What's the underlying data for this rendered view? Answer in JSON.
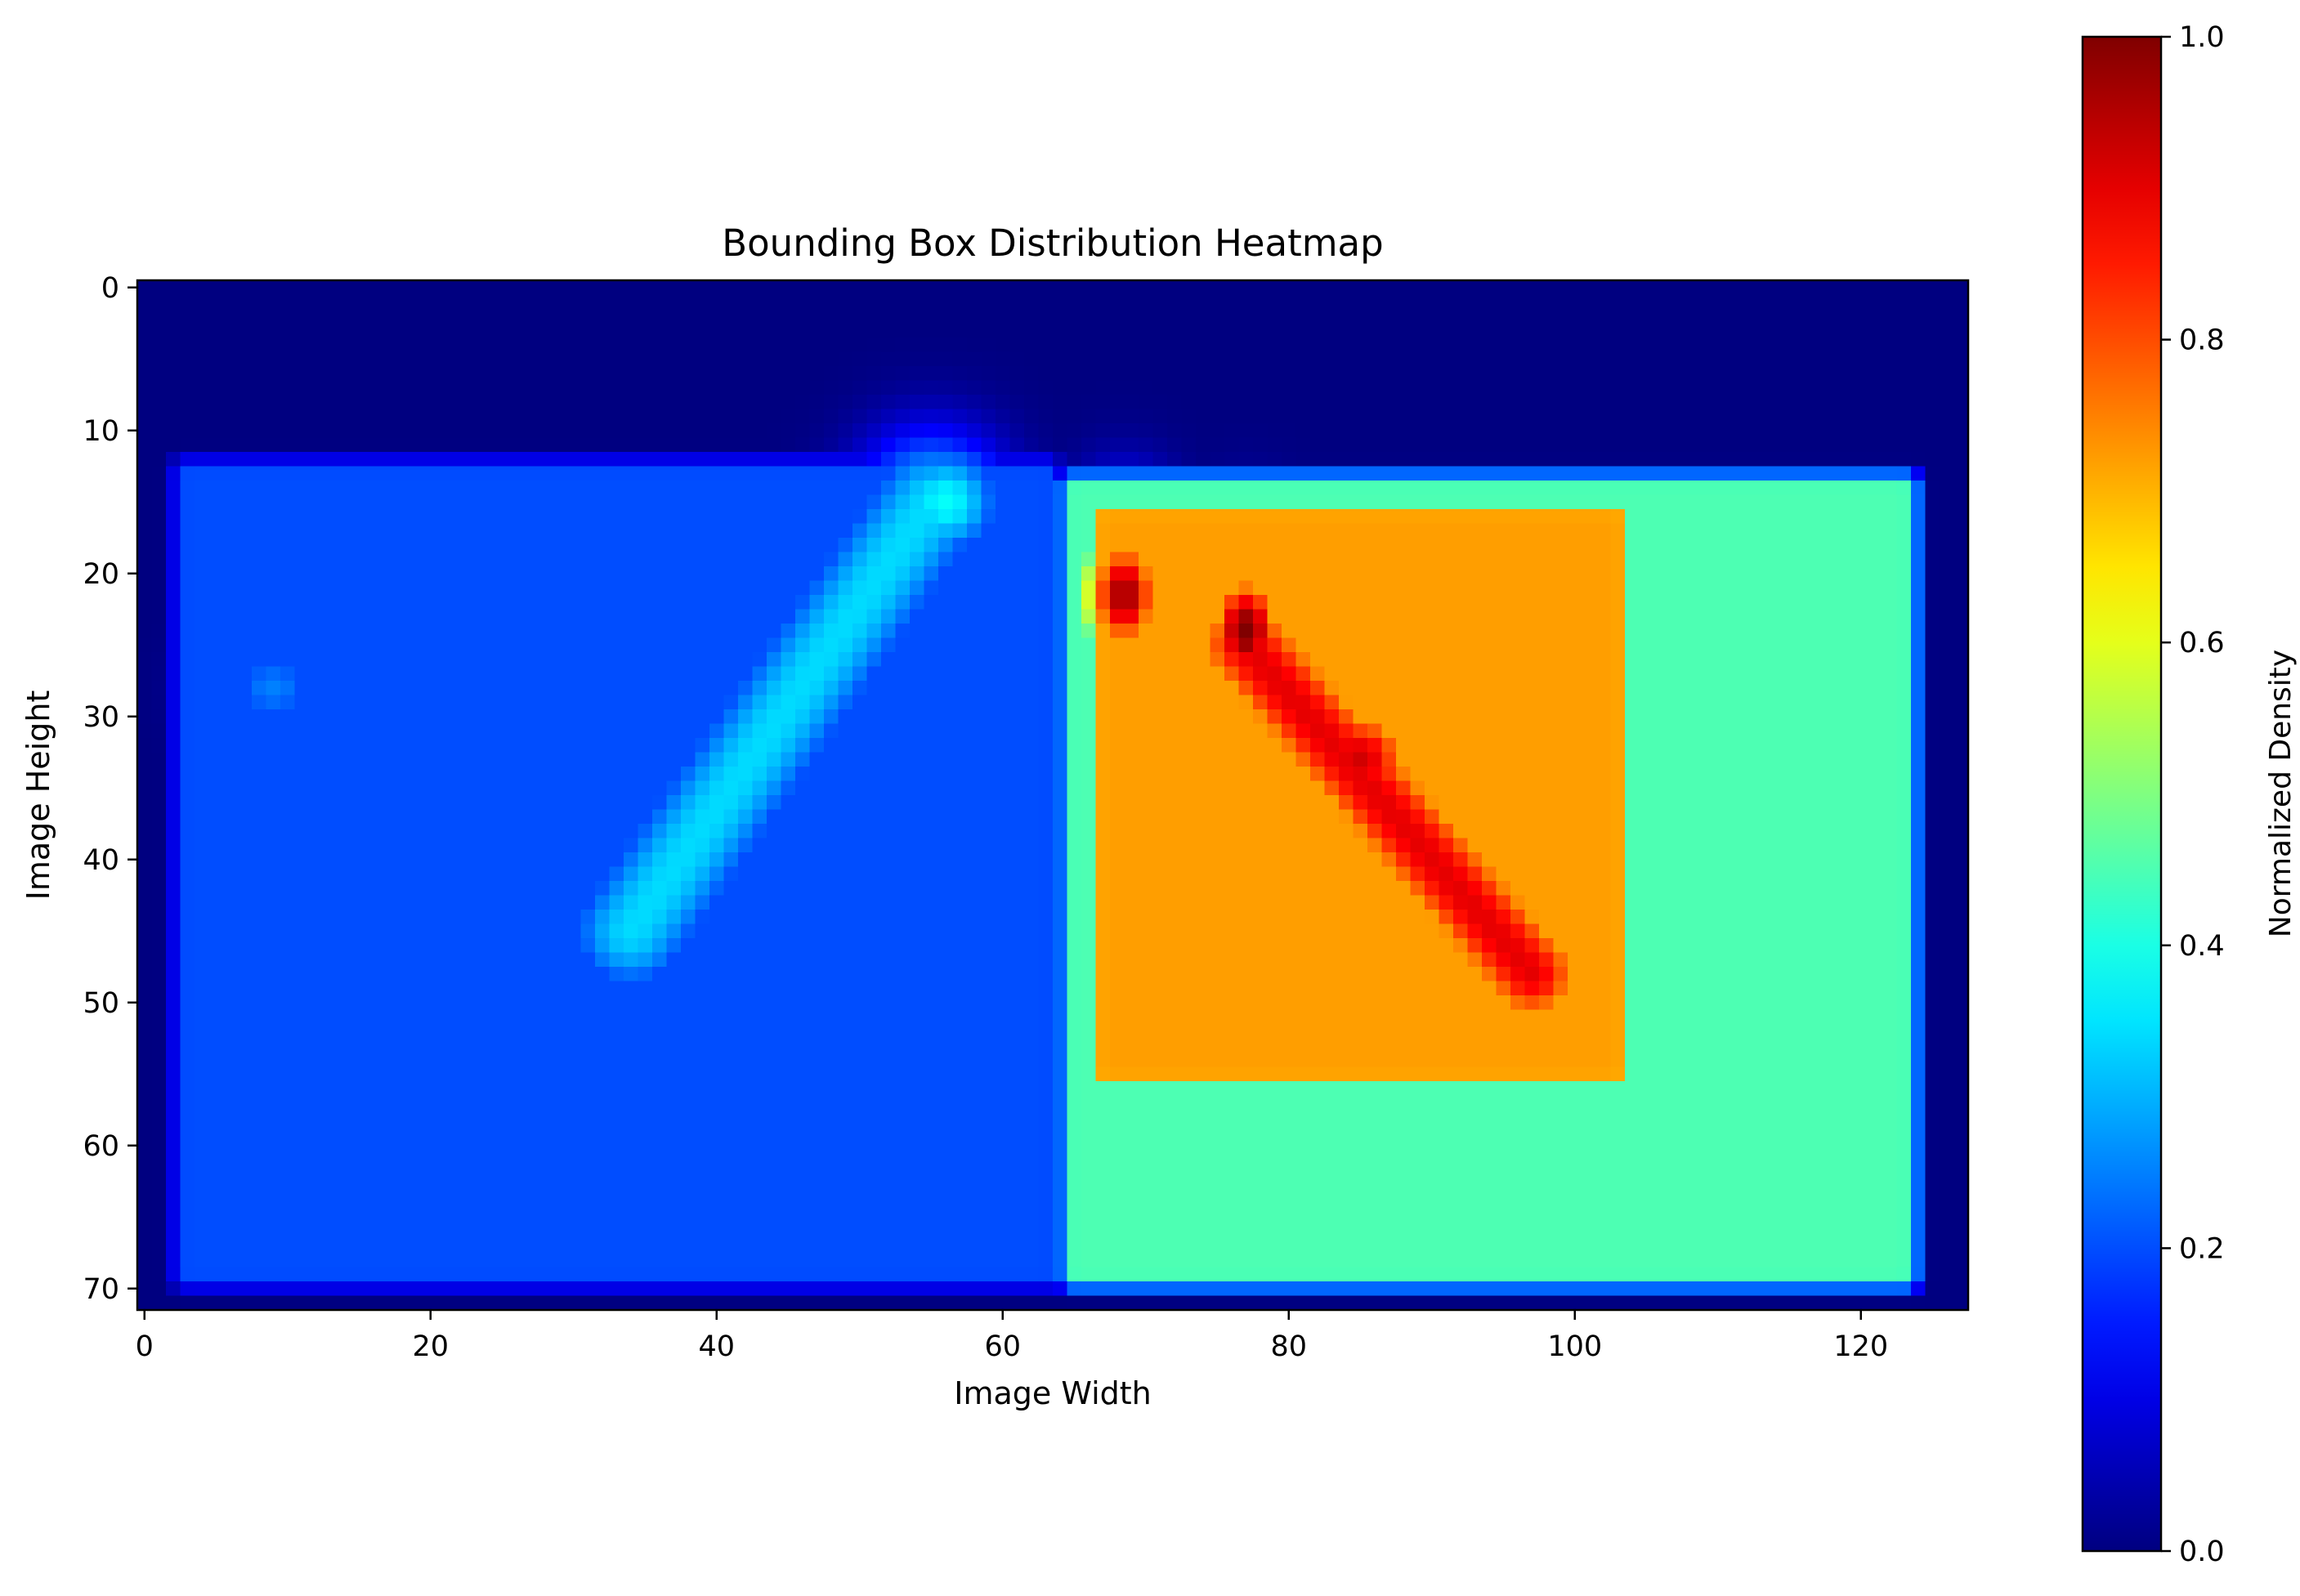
{
  "chart_data": {
    "type": "heatmap",
    "title": "Bounding Box Distribution Heatmap",
    "xlabel": "Image Width",
    "ylabel": "Image Height",
    "xlim": [
      -0.5,
      127.5
    ],
    "ylim": [
      71.5,
      -0.5
    ],
    "grid_shape": {
      "rows": 72,
      "cols": 128
    },
    "x_ticks": [
      0,
      20,
      40,
      60,
      80,
      100,
      120
    ],
    "x_tick_labels": [
      "0",
      "20",
      "40",
      "60",
      "80",
      "100",
      "120"
    ],
    "y_ticks": [
      0,
      10,
      20,
      30,
      40,
      50,
      60,
      70
    ],
    "y_tick_labels": [
      "0",
      "10",
      "20",
      "30",
      "40",
      "50",
      "60",
      "70"
    ],
    "colormap": "jet",
    "colorbar": {
      "label": "Normalized Density",
      "range": [
        0.0,
        1.0
      ],
      "ticks": [
        0.0,
        0.2,
        0.4,
        0.6,
        0.8,
        1.0
      ],
      "tick_labels": [
        "0.0",
        "0.2",
        "0.4",
        "0.6",
        "0.8",
        "1.0"
      ]
    },
    "density_regions": [
      {
        "kind": "plateau",
        "x_range": [
          64,
          124
        ],
        "y_range": [
          13,
          70
        ],
        "peak": 0.45,
        "note": "broad right box"
      },
      {
        "kind": "plateau",
        "x_range": [
          66,
          104
        ],
        "y_range": [
          15,
          56
        ],
        "peak": 0.72,
        "note": "inner right box"
      },
      {
        "kind": "plateau",
        "x_range": [
          2,
          64
        ],
        "y_range": [
          12,
          70
        ],
        "peak": 0.2,
        "note": "broad left box"
      },
      {
        "kind": "band",
        "from": [
          55,
          15
        ],
        "to": [
          34,
          45
        ],
        "width": 7,
        "peak": 0.34
      },
      {
        "kind": "blob",
        "center": [
          56,
          15
        ],
        "radius": [
          3,
          3
        ],
        "peak": 0.38
      },
      {
        "kind": "blob",
        "center": [
          9,
          28
        ],
        "radius": [
          3,
          2.5
        ],
        "peak": 0.25
      },
      {
        "kind": "band",
        "from": [
          77,
          25
        ],
        "to": [
          97,
          48
        ],
        "width": 8,
        "peak": 0.9
      },
      {
        "kind": "blob",
        "center": [
          68.5,
          21.5
        ],
        "radius": [
          2.5,
          4
        ],
        "peak": 0.97
      },
      {
        "kind": "blob",
        "center": [
          77,
          24
        ],
        "radius": [
          2.5,
          4
        ],
        "peak": 1.0
      },
      {
        "kind": "blob",
        "center": [
          85,
          33
        ],
        "radius": [
          4,
          4
        ],
        "peak": 0.92
      }
    ]
  }
}
